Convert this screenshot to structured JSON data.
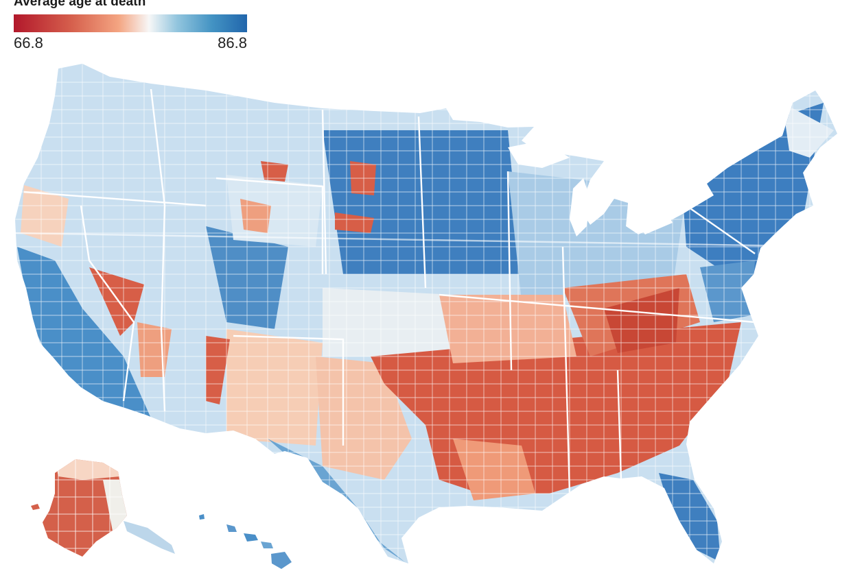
{
  "legend": {
    "title": "Average age at death",
    "min_label": "66.8",
    "max_label": "86.8",
    "min_value": 66.8,
    "max_value": 86.8,
    "colors": [
      "#b2182b",
      "#d6604d",
      "#f4a582",
      "#f7f7f7",
      "#92c5de",
      "#4393c3",
      "#2166ac"
    ]
  },
  "map": {
    "regions": [
      "contiguous-us",
      "alaska",
      "hawaii"
    ],
    "pattern": "Counties shaded by average age at death; south-central and southeastern U.S. (Appalachia, Mississippi Delta, Deep South) predominantly red (lower ages); Upper Midwest, Great Plains, Northeast, Pacific coast and Florida predominantly blue (higher ages)."
  }
}
